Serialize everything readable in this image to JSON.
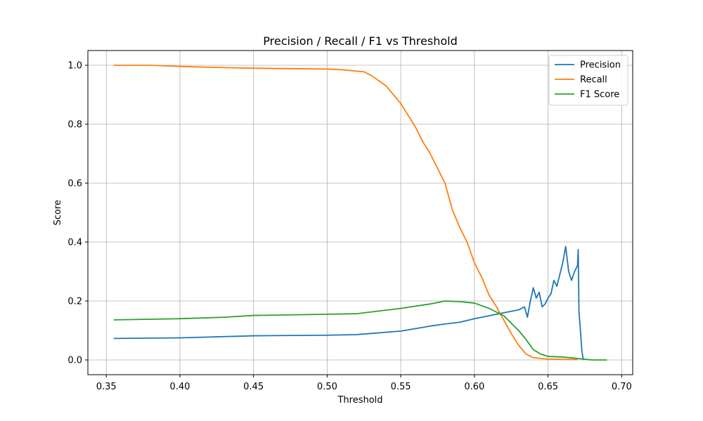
{
  "chart_data": {
    "type": "line",
    "title": "Precision / Recall / F1 vs Threshold",
    "xlabel": "Threshold",
    "ylabel": "Score",
    "xlim": [
      0.3375,
      0.7075
    ],
    "ylim": [
      -0.05,
      1.05
    ],
    "xticks": [
      0.35,
      0.4,
      0.45,
      0.5,
      0.55,
      0.6,
      0.65,
      0.7
    ],
    "xtick_labels": [
      "0.35",
      "0.40",
      "0.45",
      "0.50",
      "0.55",
      "0.60",
      "0.65",
      "0.70"
    ],
    "yticks": [
      0.0,
      0.2,
      0.4,
      0.6,
      0.8,
      1.0
    ],
    "ytick_labels": [
      "0.0",
      "0.2",
      "0.4",
      "0.6",
      "0.8",
      "1.0"
    ],
    "grid": true,
    "legend_position": "top-right",
    "series": [
      {
        "name": "Precision",
        "color": "#1f77b4",
        "x": [
          0.355,
          0.4,
          0.45,
          0.5,
          0.52,
          0.55,
          0.57,
          0.58,
          0.59,
          0.6,
          0.61,
          0.62,
          0.63,
          0.634,
          0.636,
          0.638,
          0.64,
          0.642,
          0.644,
          0.646,
          0.648,
          0.65,
          0.652,
          0.654,
          0.656,
          0.658,
          0.66,
          0.662,
          0.664,
          0.666,
          0.668,
          0.67,
          0.6705,
          0.671,
          0.672,
          0.673,
          0.674
        ],
        "y": [
          0.073,
          0.075,
          0.082,
          0.084,
          0.086,
          0.098,
          0.115,
          0.122,
          0.128,
          0.14,
          0.15,
          0.16,
          0.17,
          0.18,
          0.145,
          0.2,
          0.245,
          0.21,
          0.23,
          0.18,
          0.19,
          0.21,
          0.225,
          0.27,
          0.25,
          0.29,
          0.33,
          0.385,
          0.3,
          0.27,
          0.3,
          0.32,
          0.375,
          0.165,
          0.1,
          0.03,
          0.0
        ]
      },
      {
        "name": "Recall",
        "color": "#ff7f0e",
        "x": [
          0.355,
          0.38,
          0.4,
          0.43,
          0.45,
          0.5,
          0.51,
          0.52,
          0.525,
          0.53,
          0.54,
          0.55,
          0.56,
          0.565,
          0.57,
          0.58,
          0.585,
          0.59,
          0.595,
          0.6,
          0.605,
          0.61,
          0.615,
          0.62,
          0.625,
          0.63,
          0.635,
          0.64,
          0.645,
          0.65,
          0.66,
          0.67
        ],
        "y": [
          1.0,
          1.0,
          0.996,
          0.992,
          0.99,
          0.987,
          0.985,
          0.98,
          0.978,
          0.965,
          0.93,
          0.87,
          0.79,
          0.74,
          0.7,
          0.6,
          0.51,
          0.45,
          0.4,
          0.33,
          0.28,
          0.22,
          0.18,
          0.135,
          0.09,
          0.05,
          0.02,
          0.008,
          0.005,
          0.003,
          0.002,
          0.001
        ]
      },
      {
        "name": "F1 Score",
        "color": "#2ca02c",
        "x": [
          0.355,
          0.4,
          0.43,
          0.45,
          0.5,
          0.52,
          0.55,
          0.57,
          0.58,
          0.59,
          0.6,
          0.61,
          0.62,
          0.625,
          0.63,
          0.635,
          0.64,
          0.645,
          0.65,
          0.66,
          0.67,
          0.68,
          0.69
        ],
        "y": [
          0.136,
          0.14,
          0.145,
          0.151,
          0.155,
          0.157,
          0.175,
          0.19,
          0.2,
          0.198,
          0.193,
          0.175,
          0.15,
          0.125,
          0.1,
          0.07,
          0.035,
          0.02,
          0.012,
          0.01,
          0.005,
          0.0,
          0.0
        ]
      }
    ]
  }
}
